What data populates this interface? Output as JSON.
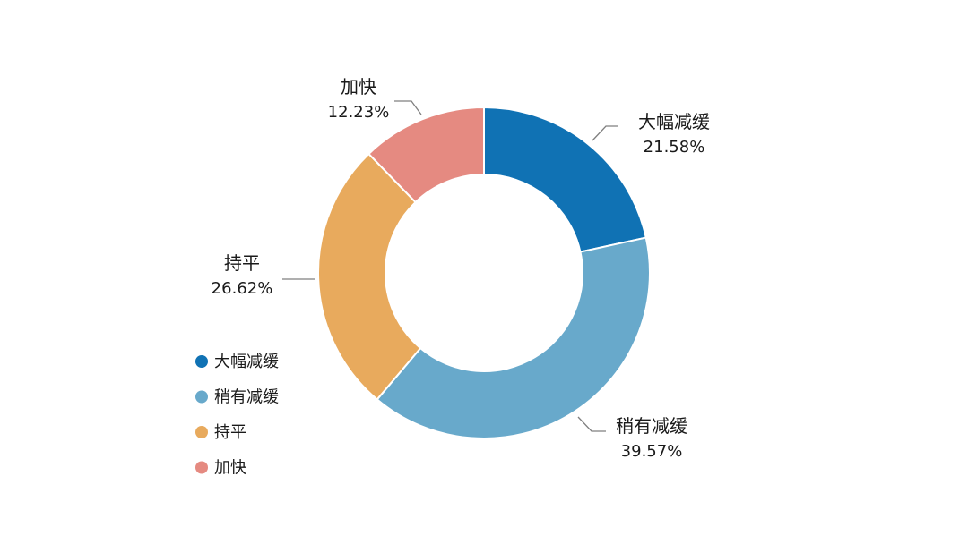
{
  "chart_data": {
    "type": "pie",
    "donut": true,
    "title": "",
    "slices": [
      {
        "label": "大幅减缓",
        "value": 21.58,
        "value_label": "21.58%",
        "color": "#1072b4"
      },
      {
        "label": "稍有减缓",
        "value": 39.57,
        "value_label": "39.57%",
        "color": "#68a9cb"
      },
      {
        "label": "持平",
        "value": 26.62,
        "value_label": "26.62%",
        "color": "#e8aa5d"
      },
      {
        "label": "加快",
        "value": 12.23,
        "value_label": "12.23%",
        "color": "#e58a81"
      }
    ],
    "legend": {
      "placement": "left",
      "items": [
        "大幅减缓",
        "稍有减缓",
        "持平",
        "加快"
      ]
    }
  }
}
